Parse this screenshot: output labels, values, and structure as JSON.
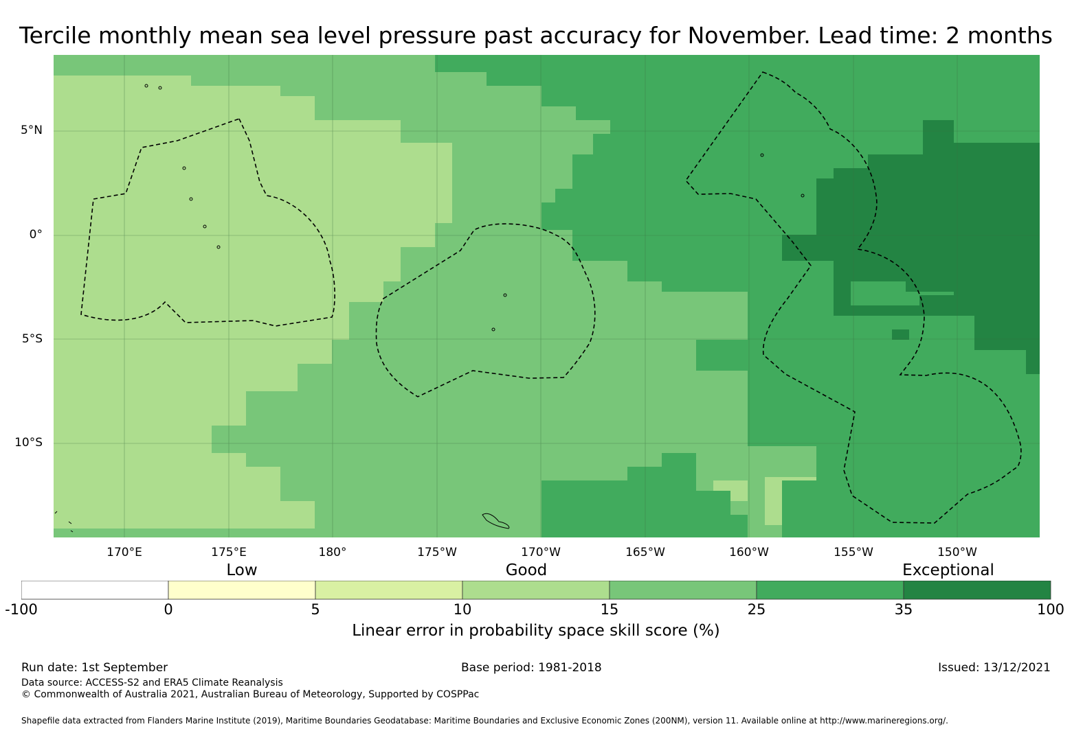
{
  "title": "Tercile monthly mean sea level pressure past accuracy for November. Lead time: 2 months",
  "map": {
    "lat_labels": [
      {
        "text": "5°N",
        "lat": 5
      },
      {
        "text": "0°",
        "lat": 0
      },
      {
        "text": "5°S",
        "lat": -5
      },
      {
        "text": "10°S",
        "lat": -10
      }
    ],
    "lon_labels": [
      {
        "text": "170°E",
        "lon": 170
      },
      {
        "text": "175°E",
        "lon": 175
      },
      {
        "text": "180°",
        "lon": 180
      },
      {
        "text": "175°W",
        "lon": 185
      },
      {
        "text": "170°W",
        "lon": 190
      },
      {
        "text": "165°W",
        "lon": 195
      },
      {
        "text": "160°W",
        "lon": 200
      },
      {
        "text": "155°W",
        "lon": 205
      },
      {
        "text": "150°W",
        "lon": 210
      }
    ],
    "extent": {
      "lon_min": 166.6,
      "lon_max": 213.9,
      "lat_min": -14.6,
      "lat_max": 8.5
    }
  },
  "categories": {
    "low": "Low",
    "good": "Good",
    "exceptional": "Exceptional"
  },
  "colorbar": {
    "ticks": [
      "-100",
      "0",
      "5",
      "10",
      "15",
      "25",
      "35",
      "100"
    ],
    "colors": [
      "#ffffff",
      "#ffffcc",
      "#d9f0a3",
      "#addd8e",
      "#78c679",
      "#41ab5d",
      "#238443"
    ],
    "label": "Linear error in probability space skill score (%)"
  },
  "footer": {
    "run_date": "Run date: 1st September",
    "base_period": "Base period: 1981-2018",
    "issued": "Issued: 13/12/2021",
    "data_source": "Data source: ACCESS-S2 and ERA5 Climate Reanalysis",
    "copyright": "© Commonwealth of Australia 2021, Australian Bureau of Meteorology, Supported by COSPPac",
    "shapefile": "Shapefile data extracted from Flanders Marine Institute (2019), Maritime Boundaries Geodatabase: Maritime Boundaries and Exclusive Economic Zones (200NM), version 11. Available online at http://www.marineregions.org/."
  }
}
